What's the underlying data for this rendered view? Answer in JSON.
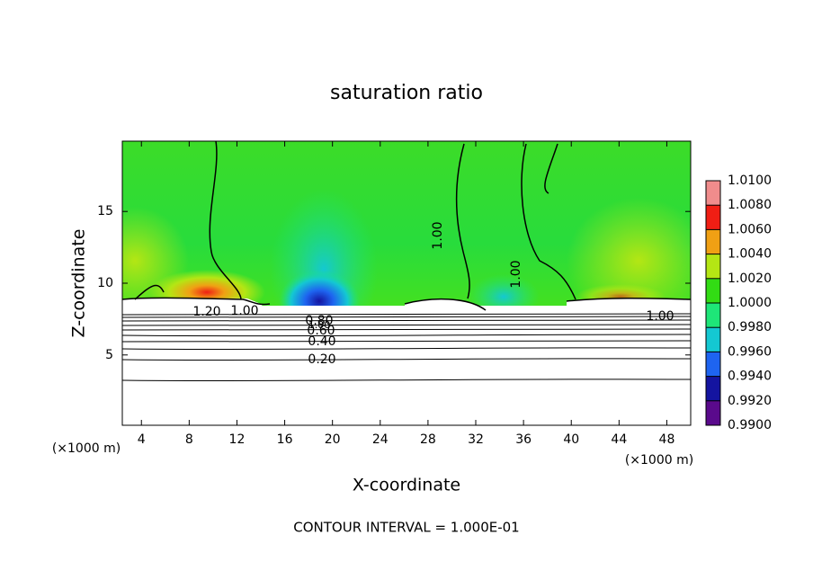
{
  "chart_data": {
    "type": "contour",
    "title": "saturation ratio",
    "x_label": "X-coordinate",
    "y_label": "Z-coordinate",
    "x_unit_labels": [
      "(×1000 m)",
      "(×1000 m)"
    ],
    "annotation": "CONTOUR INTERVAL = 1.000E-01",
    "xlim": [
      2.4,
      50
    ],
    "xticks": [
      4,
      8,
      12,
      16,
      20,
      24,
      28,
      32,
      36,
      40,
      44,
      48
    ],
    "ylim": [
      0.1,
      19.9
    ],
    "yticks": [
      5,
      10,
      15
    ],
    "contour_labels": [
      "1.20",
      "1.00",
      "0.80",
      "0.60",
      "0.40",
      "0.20",
      "1.00",
      "1.00",
      "1.00",
      "1.00"
    ],
    "colorbar": {
      "lim": [
        0.99,
        1.01
      ],
      "colors": [
        "#5a0a8c",
        "#1414a0",
        "#1e64f0",
        "#14c8d2",
        "#1ee678",
        "#32dc14",
        "#b4e614",
        "#f0a014",
        "#f01e14",
        "#f08c8c"
      ],
      "ticks": [
        {
          "value": 0.99,
          "label": "0.9900"
        },
        {
          "value": 0.992,
          "label": "0.9920"
        },
        {
          "value": 0.994,
          "label": "0.9940"
        },
        {
          "value": 0.996,
          "label": "0.9960"
        },
        {
          "value": 0.998,
          "label": "0.9980"
        },
        {
          "value": 1.0,
          "label": "1.0000"
        },
        {
          "value": 1.002,
          "label": "1.0020"
        },
        {
          "value": 1.004,
          "label": "1.0040"
        },
        {
          "value": 1.006,
          "label": "1.0060"
        },
        {
          "value": 1.008,
          "label": "1.0080"
        },
        {
          "value": 1.01,
          "label": "1.0100"
        }
      ]
    }
  }
}
